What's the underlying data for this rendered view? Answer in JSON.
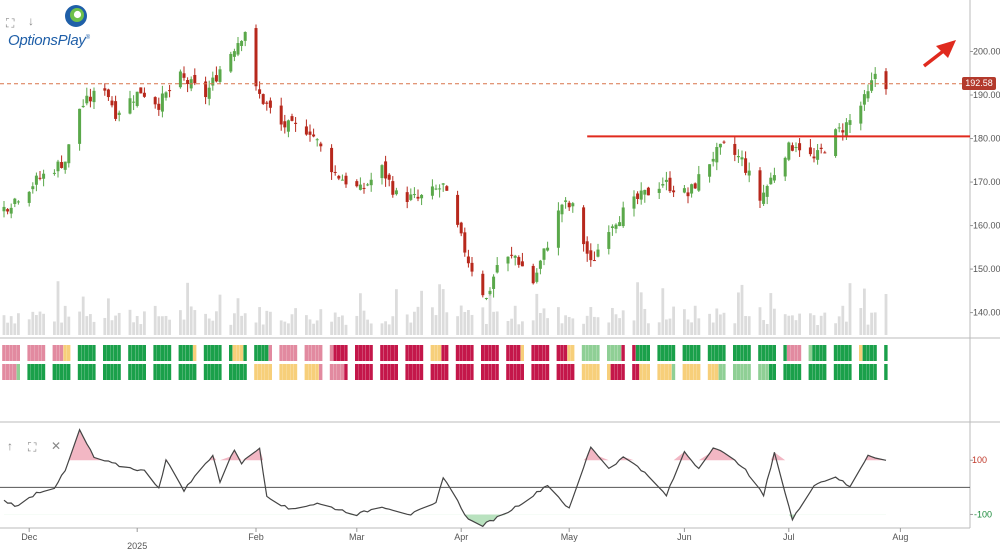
{
  "logo": {
    "text": "OptionsPlay",
    "trademark": "®"
  },
  "tools": {
    "top_expand_icon": "⛶",
    "top_down_icon": "↓",
    "osc_up_icon": "↑",
    "osc_expand_icon": "⛶",
    "osc_close_icon": "✕"
  },
  "last_price_label": "192.58",
  "colors": {
    "up": "#5aa84a",
    "down": "#b7281c",
    "volume": "#dcdcdc",
    "signal_line": "#e02a1e",
    "price_line": "#d8744a",
    "strong_green": "#1aa04a",
    "light_green": "#8fcf95",
    "pink": "#e28aa0",
    "crimson": "#c4174a",
    "yellow": "#f7cf7a",
    "osc_pos_fill": "#f2b7c4",
    "osc_neg_fill": "#b9e2bf"
  },
  "chart_data": [
    {
      "type": "candlestick",
      "title": "",
      "x_tick_labels": [
        "Dec",
        "2025",
        "Feb",
        "Mar",
        "Apr",
        "May",
        "Jun",
        "Jul",
        "Aug"
      ],
      "y_tick_labels": [
        "200.00",
        "190.00",
        "180.00",
        "170.00",
        "160.00",
        "150.00",
        "140.00"
      ],
      "ylim": [
        136,
        210
      ],
      "last_price": 192.58,
      "resistance_level": 180.5,
      "trend_arrow": "up",
      "grid": false,
      "anchors": [
        [
          "2024-11-25",
          164
        ],
        [
          "2024-12-05",
          171
        ],
        [
          "2024-12-12",
          175
        ],
        [
          "2024-12-16",
          187
        ],
        [
          "2024-12-23",
          192
        ],
        [
          "2024-12-26",
          186
        ],
        [
          "2025-01-02",
          191
        ],
        [
          "2025-01-07",
          188
        ],
        [
          "2025-01-13",
          194
        ],
        [
          "2025-01-20",
          190
        ],
        [
          "2025-01-24",
          196
        ],
        [
          "2025-01-31",
          205
        ],
        [
          "2025-02-03",
          191
        ],
        [
          "2025-02-10",
          183
        ],
        [
          "2025-02-18",
          182
        ],
        [
          "2025-02-25",
          172
        ],
        [
          "2025-03-04",
          168
        ],
        [
          "2025-03-10",
          173
        ],
        [
          "2025-03-14",
          167
        ],
        [
          "2025-03-20",
          166
        ],
        [
          "2025-03-27",
          169
        ],
        [
          "2025-04-03",
          152
        ],
        [
          "2025-04-08",
          143
        ],
        [
          "2025-04-11",
          151
        ],
        [
          "2025-04-16",
          153
        ],
        [
          "2025-04-21",
          147
        ],
        [
          "2025-04-29",
          165
        ],
        [
          "2025-05-02",
          164
        ],
        [
          "2025-05-07",
          151
        ],
        [
          "2025-05-12",
          160
        ],
        [
          "2025-05-20",
          166
        ],
        [
          "2025-05-27",
          170
        ],
        [
          "2025-06-03",
          167
        ],
        [
          "2025-06-10",
          176
        ],
        [
          "2025-06-13",
          178
        ],
        [
          "2025-06-18",
          175
        ],
        [
          "2025-06-23",
          166
        ],
        [
          "2025-06-30",
          177
        ],
        [
          "2025-07-03",
          179
        ],
        [
          "2025-07-08",
          175
        ],
        [
          "2025-07-14",
          181
        ],
        [
          "2025-07-18",
          184
        ],
        [
          "2025-07-23",
          190
        ],
        [
          "2025-07-25",
          195
        ],
        [
          "2025-07-28",
          192.6
        ]
      ],
      "volume_max": 100
    },
    {
      "type": "heatmap",
      "title": "",
      "rows": 2,
      "colors_key": [
        "strong_green",
        "light_green",
        "pink",
        "crimson",
        "yellow"
      ],
      "row1_segments": [
        [
          "2024-11-25",
          "pink"
        ],
        [
          "2024-12-12",
          "yellow"
        ],
        [
          "2024-12-16",
          "strong_green"
        ],
        [
          "2025-01-17",
          "yellow"
        ],
        [
          "2025-01-20",
          "strong_green"
        ],
        [
          "2025-01-28",
          "yellow"
        ],
        [
          "2025-01-31",
          "strong_green"
        ],
        [
          "2025-02-07",
          "pink"
        ],
        [
          "2025-02-25",
          "crimson"
        ],
        [
          "2025-03-24",
          "yellow"
        ],
        [
          "2025-03-27",
          "crimson"
        ],
        [
          "2025-04-18",
          "yellow"
        ],
        [
          "2025-04-21",
          "crimson"
        ],
        [
          "2025-05-01",
          "yellow"
        ],
        [
          "2025-05-05",
          "light_green"
        ],
        [
          "2025-05-16",
          "crimson"
        ],
        [
          "2025-05-20",
          "strong_green"
        ],
        [
          "2025-07-01",
          "pink"
        ],
        [
          "2025-07-07",
          "light_green"
        ],
        [
          "2025-07-08",
          "strong_green"
        ],
        [
          "2025-07-21",
          "yellow"
        ],
        [
          "2025-07-22",
          "strong_green"
        ]
      ],
      "row2_segments": [
        [
          "2024-11-25",
          "pink"
        ],
        [
          "2024-11-29",
          "light_green"
        ],
        [
          "2024-12-02",
          "strong_green"
        ],
        [
          "2025-02-03",
          "yellow"
        ],
        [
          "2025-02-21",
          "pink"
        ],
        [
          "2025-02-28",
          "crimson"
        ],
        [
          "2025-05-05",
          "yellow"
        ],
        [
          "2025-05-13",
          "crimson"
        ],
        [
          "2025-05-21",
          "yellow"
        ],
        [
          "2025-05-30",
          "light_green"
        ],
        [
          "2025-06-02",
          "yellow"
        ],
        [
          "2025-06-12",
          "light_green"
        ],
        [
          "2025-06-26",
          "strong_green"
        ]
      ]
    },
    {
      "type": "line",
      "title": "",
      "y_tick_labels": [
        "100",
        "-100"
      ],
      "ylim": [
        -150,
        230
      ],
      "baseline": 0,
      "upper_band": 100,
      "lower_band": -100,
      "anchors": [
        [
          "2024-11-25",
          -50
        ],
        [
          "2024-11-29",
          -70
        ],
        [
          "2024-12-04",
          -20
        ],
        [
          "2024-12-09",
          0
        ],
        [
          "2024-12-12",
          60
        ],
        [
          "2024-12-16",
          210
        ],
        [
          "2024-12-20",
          110
        ],
        [
          "2024-12-27",
          80
        ],
        [
          "2025-01-03",
          60
        ],
        [
          "2025-01-07",
          0
        ],
        [
          "2025-01-09",
          100
        ],
        [
          "2025-01-14",
          -10
        ],
        [
          "2025-01-22",
          120
        ],
        [
          "2025-01-24",
          20
        ],
        [
          "2025-01-28",
          140
        ],
        [
          "2025-01-30",
          90
        ],
        [
          "2025-02-04",
          145
        ],
        [
          "2025-02-06",
          -30
        ],
        [
          "2025-02-12",
          -80
        ],
        [
          "2025-02-20",
          -60
        ],
        [
          "2025-03-03",
          -100
        ],
        [
          "2025-03-10",
          -70
        ],
        [
          "2025-03-18",
          -100
        ],
        [
          "2025-03-25",
          -60
        ],
        [
          "2025-03-27",
          40
        ],
        [
          "2025-04-03",
          -120
        ],
        [
          "2025-04-07",
          -140
        ],
        [
          "2025-04-14",
          -90
        ],
        [
          "2025-04-21",
          -30
        ],
        [
          "2025-04-25",
          10
        ],
        [
          "2025-05-01",
          -80
        ],
        [
          "2025-05-07",
          150
        ],
        [
          "2025-05-12",
          70
        ],
        [
          "2025-05-16",
          110
        ],
        [
          "2025-05-20",
          80
        ],
        [
          "2025-05-28",
          -30
        ],
        [
          "2025-06-02",
          130
        ],
        [
          "2025-06-06",
          70
        ],
        [
          "2025-06-10",
          150
        ],
        [
          "2025-06-18",
          80
        ],
        [
          "2025-06-24",
          -30
        ],
        [
          "2025-06-27",
          130
        ],
        [
          "2025-07-02",
          -120
        ],
        [
          "2025-07-08",
          10
        ],
        [
          "2025-07-14",
          40
        ],
        [
          "2025-07-18",
          0
        ],
        [
          "2025-07-23",
          120
        ],
        [
          "2025-07-28",
          100
        ]
      ]
    }
  ]
}
